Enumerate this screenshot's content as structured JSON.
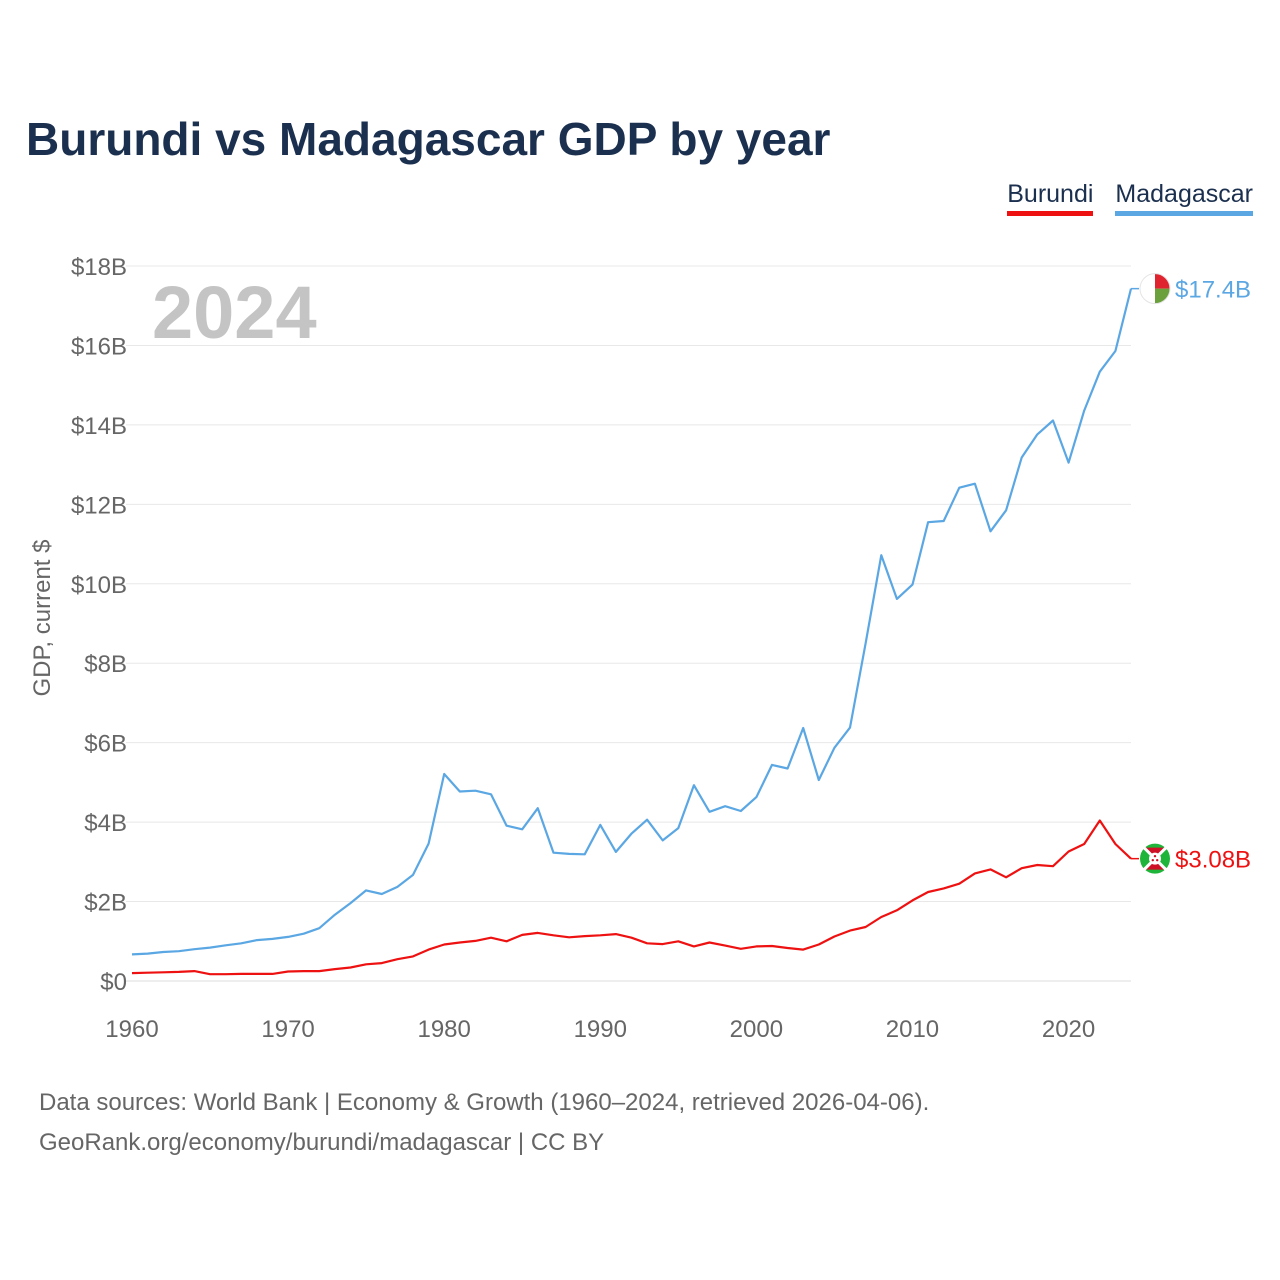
{
  "title": "Burundi vs Madagascar GDP by year",
  "legend": [
    {
      "label": "Burundi",
      "color": "#ee1111"
    },
    {
      "label": "Madagascar",
      "color": "#5ba7e3"
    }
  ],
  "year_label": "2024",
  "footer": {
    "line1": "Data sources: World Bank | Economy & Growth (1960–2024, retrieved 2026-04-06).",
    "line2": "GeoRank.org/economy/burundi/madagascar | CC BY"
  },
  "chart_data": {
    "type": "line",
    "title": "Burundi vs Madagascar GDP by year",
    "xlabel": "",
    "ylabel": "GDP, current $",
    "xlim": [
      1960,
      2024
    ],
    "ylim": [
      0,
      18
    ],
    "y_unit": "billions USD",
    "x_ticks": [
      1960,
      1970,
      1980,
      1990,
      2000,
      2010,
      2020
    ],
    "x_tick_labels": [
      "1960",
      "1970",
      "1980",
      "1990",
      "2000",
      "2010",
      "2020"
    ],
    "y_ticks": [
      0,
      2,
      4,
      6,
      8,
      10,
      12,
      14,
      16,
      18
    ],
    "y_tick_labels": [
      "$0",
      "$2B",
      "$4B",
      "$6B",
      "$8B",
      "$10B",
      "$12B",
      "$14B",
      "$16B",
      "$18B"
    ],
    "grid": true,
    "legend_position": "top-right",
    "x": [
      1960,
      1961,
      1962,
      1963,
      1964,
      1965,
      1966,
      1967,
      1968,
      1969,
      1970,
      1971,
      1972,
      1973,
      1974,
      1975,
      1976,
      1977,
      1978,
      1979,
      1980,
      1981,
      1982,
      1983,
      1984,
      1985,
      1986,
      1987,
      1988,
      1989,
      1990,
      1991,
      1992,
      1993,
      1994,
      1995,
      1996,
      1997,
      1998,
      1999,
      2000,
      2001,
      2002,
      2003,
      2004,
      2005,
      2006,
      2007,
      2008,
      2009,
      2010,
      2011,
      2012,
      2013,
      2014,
      2015,
      2016,
      2017,
      2018,
      2019,
      2020,
      2021,
      2022,
      2023,
      2024
    ],
    "series": [
      {
        "name": "Burundi",
        "color": "#ee1111",
        "end_label": "$3.08B",
        "values": [
          0.2,
          0.21,
          0.22,
          0.23,
          0.25,
          0.17,
          0.17,
          0.18,
          0.18,
          0.18,
          0.24,
          0.25,
          0.25,
          0.3,
          0.34,
          0.42,
          0.45,
          0.55,
          0.62,
          0.79,
          0.92,
          0.97,
          1.01,
          1.09,
          1.0,
          1.16,
          1.21,
          1.15,
          1.1,
          1.13,
          1.15,
          1.18,
          1.09,
          0.95,
          0.93,
          1.0,
          0.87,
          0.97,
          0.89,
          0.81,
          0.87,
          0.88,
          0.83,
          0.79,
          0.92,
          1.12,
          1.27,
          1.36,
          1.61,
          1.78,
          2.03,
          2.24,
          2.33,
          2.45,
          2.71,
          2.81,
          2.61,
          2.84,
          2.92,
          2.89,
          3.26,
          3.45,
          4.04,
          3.45,
          3.08
        ]
      },
      {
        "name": "Madagascar",
        "color": "#5ba7e3",
        "end_label": "$17.4B",
        "values": [
          0.67,
          0.69,
          0.73,
          0.75,
          0.8,
          0.84,
          0.9,
          0.95,
          1.03,
          1.06,
          1.11,
          1.19,
          1.33,
          1.67,
          1.96,
          2.28,
          2.19,
          2.37,
          2.67,
          3.46,
          5.21,
          4.77,
          4.79,
          4.7,
          3.91,
          3.82,
          4.35,
          3.23,
          3.2,
          3.19,
          3.93,
          3.25,
          3.71,
          4.06,
          3.54,
          3.85,
          4.93,
          4.26,
          4.4,
          4.28,
          4.63,
          5.44,
          5.35,
          6.37,
          5.06,
          5.87,
          6.38,
          8.5,
          10.72,
          9.62,
          9.98,
          11.55,
          11.58,
          12.42,
          12.52,
          11.32,
          11.85,
          13.18,
          13.76,
          14.11,
          13.05,
          14.36,
          15.34,
          15.86,
          17.43
        ]
      }
    ]
  }
}
